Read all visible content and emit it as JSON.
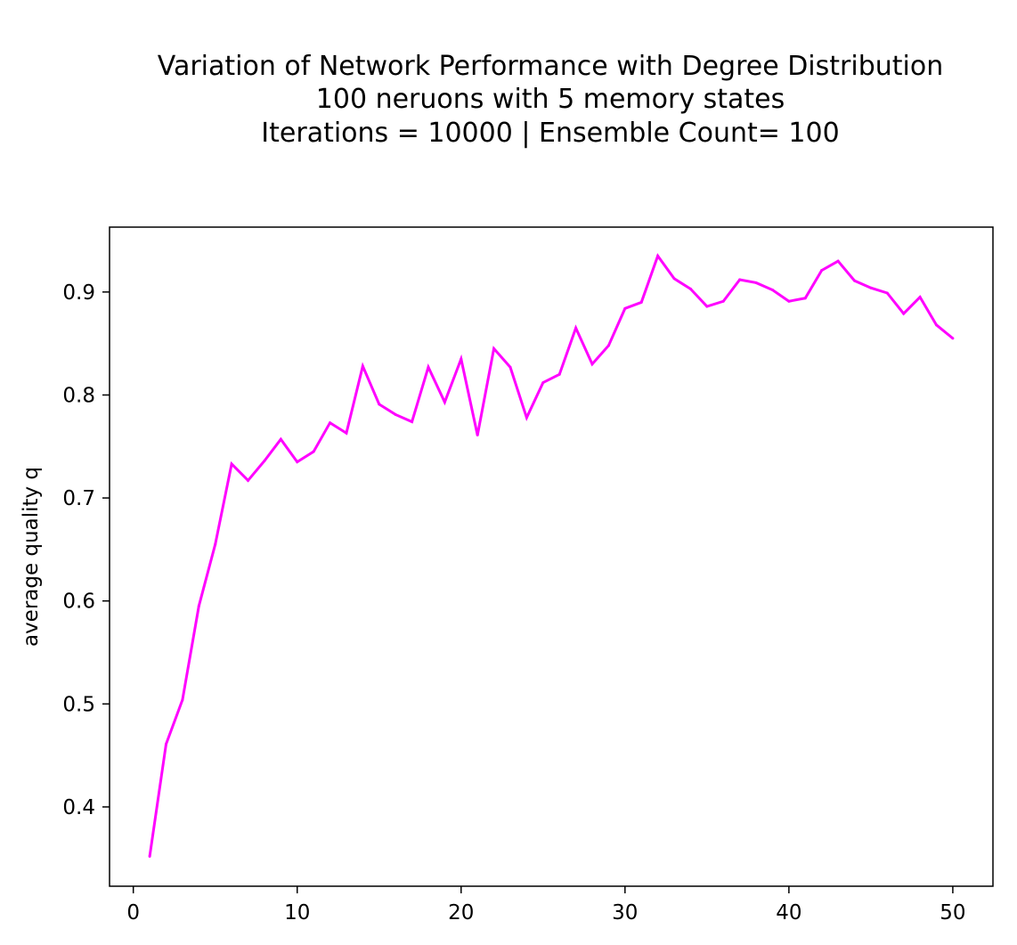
{
  "chart_data": {
    "type": "line",
    "title": [
      "Variation of Network Performance with Degree Distribution",
      "100 neruons with 5 memory states",
      "Iterations = 10000 | Ensemble Count= 100"
    ],
    "xlabel": "",
    "ylabel": "average quality q",
    "xlim": [
      -1.45,
      52.45
    ],
    "ylim": [
      0.323,
      0.963
    ],
    "xticks": [
      0,
      10,
      20,
      30,
      40,
      50
    ],
    "yticks": [
      0.4,
      0.5,
      0.6,
      0.7,
      0.8,
      0.9
    ],
    "xtick_labels": [
      "0",
      "10",
      "20",
      "30",
      "40",
      "50"
    ],
    "ytick_labels": [
      "0.4",
      "0.5",
      "0.6",
      "0.7",
      "0.8",
      "0.9"
    ],
    "grid": false,
    "legend": "none",
    "series": [
      {
        "color": "#ff00ff",
        "x": [
          1,
          2,
          3,
          4,
          5,
          6,
          7,
          8,
          9,
          10,
          11,
          12,
          13,
          14,
          15,
          16,
          17,
          18,
          19,
          20,
          21,
          22,
          23,
          24,
          25,
          26,
          27,
          28,
          29,
          30,
          31,
          32,
          33,
          34,
          35,
          36,
          37,
          38,
          39,
          40,
          41,
          42,
          43,
          44,
          45,
          46,
          47,
          48,
          49,
          50
        ],
        "y": [
          0.352,
          0.461,
          0.504,
          0.595,
          0.655,
          0.733,
          0.717,
          0.736,
          0.757,
          0.735,
          0.745,
          0.773,
          0.763,
          0.828,
          0.791,
          0.781,
          0.774,
          0.827,
          0.793,
          0.835,
          0.761,
          0.845,
          0.827,
          0.778,
          0.812,
          0.82,
          0.865,
          0.83,
          0.848,
          0.884,
          0.89,
          0.935,
          0.913,
          0.903,
          0.886,
          0.891,
          0.912,
          0.909,
          0.902,
          0.891,
          0.894,
          0.921,
          0.93,
          0.911,
          0.904,
          0.899,
          0.879,
          0.895,
          0.868,
          0.855
        ]
      }
    ]
  }
}
